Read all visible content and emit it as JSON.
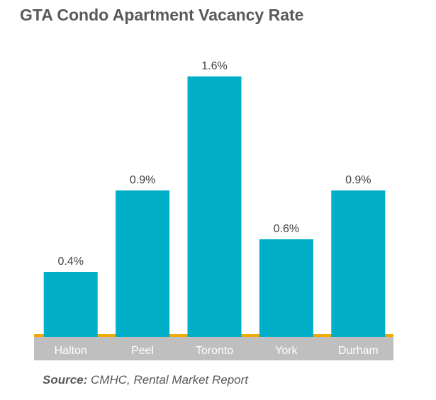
{
  "chart_data": {
    "type": "bar",
    "title": "GTA Condo Apartment Vacancy Rate",
    "categories": [
      "Halton",
      "Peel",
      "Toronto",
      "York",
      "Durham"
    ],
    "values": [
      0.4,
      0.9,
      1.6,
      0.6,
      0.9
    ],
    "data_labels": [
      "0.4%",
      "0.9%",
      "1.6%",
      "0.6%",
      "0.9%"
    ],
    "xlabel": "",
    "ylabel": "",
    "ylim": [
      0,
      1.6
    ],
    "grid": false,
    "colors": {
      "bar": "#00AEC7",
      "baseline": "#F2A900",
      "axis_band": "#BFBFBF",
      "axis_text": "#FFFFFF",
      "label_text": "#404040"
    }
  },
  "source": {
    "label": "Source:",
    "text": " CMHC, Rental Market Report"
  }
}
